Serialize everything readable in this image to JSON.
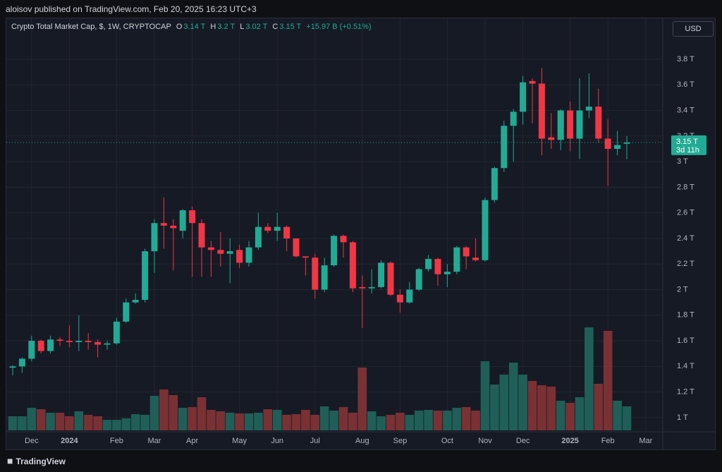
{
  "header": {
    "publisher": "aloisov published on TradingView.com, Feb 20, 2025 16:23 UTC+3"
  },
  "footer": {
    "brand": "TradingView"
  },
  "chart_data": {
    "type": "candlestick",
    "title": "Crypto Total Market Cap, $, 1W, CRYPTOCAP",
    "legend_values": [
      {
        "key": "O",
        "label": "3.14 T"
      },
      {
        "key": "H",
        "label": "3.2 T"
      },
      {
        "key": "L",
        "label": "3.02 T"
      },
      {
        "key": "C",
        "label": "3.15 T"
      }
    ],
    "change": "+15.97 B (+0.51%)",
    "currency": "USD",
    "last_price": {
      "value": 3.15,
      "label": "3.15 T"
    },
    "countdown": "3d 11h",
    "up_color": "#22ab94",
    "down_color": "#f23645",
    "volume_up_color": "#1f5f58",
    "volume_down_color": "#7a3134",
    "grid": true,
    "ylim": [
      0.9,
      4.12
    ],
    "yticks": [
      {
        "value": 1,
        "label": "1 T"
      },
      {
        "value": 1.2,
        "label": "1.2 T"
      },
      {
        "value": 1.4,
        "label": "1.4 T"
      },
      {
        "value": 1.6,
        "label": "1.6 T"
      },
      {
        "value": 1.8,
        "label": "1.8 T"
      },
      {
        "value": 2,
        "label": "2 T"
      },
      {
        "value": 2.2,
        "label": "2.2 T"
      },
      {
        "value": 2.4,
        "label": "2.4 T"
      },
      {
        "value": 2.6,
        "label": "2.6 T"
      },
      {
        "value": 2.8,
        "label": "2.8 T"
      },
      {
        "value": 3,
        "label": "3 T"
      },
      {
        "value": 3.2,
        "label": "3.2 T"
      },
      {
        "value": 3.4,
        "label": "3.4 T"
      },
      {
        "value": 3.6,
        "label": "3.6 T"
      },
      {
        "value": 3.8,
        "label": "3.8 T"
      }
    ],
    "categories": [
      null,
      null,
      "Dec",
      null,
      null,
      null,
      "2024",
      null,
      null,
      null,
      null,
      "Feb",
      null,
      null,
      null,
      "Mar",
      null,
      null,
      null,
      "Apr",
      null,
      null,
      null,
      null,
      "May",
      null,
      null,
      null,
      "Jun",
      null,
      null,
      null,
      "Jul",
      null,
      null,
      null,
      null,
      "Aug",
      null,
      null,
      null,
      "Sep",
      null,
      null,
      null,
      null,
      "Oct",
      null,
      null,
      null,
      "Nov",
      null,
      null,
      null,
      "Dec",
      null,
      null,
      null,
      null,
      "2025",
      null,
      null,
      null,
      "Feb",
      null,
      null,
      null,
      "Mar"
    ],
    "open": [
      1.39,
      1.4,
      1.46,
      1.6,
      1.52,
      1.61,
      1.6,
      1.59,
      1.6,
      1.59,
      1.57,
      1.58,
      1.75,
      1.9,
      1.92,
      2.3,
      2.52,
      2.5,
      2.46,
      2.62,
      2.52,
      2.33,
      2.31,
      2.28,
      2.31,
      2.21,
      2.33,
      2.49,
      2.46,
      2.49,
      2.4,
      2.26,
      2.25,
      2.0,
      2.19,
      2.42,
      2.37,
      2.02,
      2.01,
      2.02,
      2.21,
      1.96,
      1.9,
      2.0,
      2.16,
      2.24,
      2.12,
      2.14,
      2.33,
      2.25,
      2.23,
      2.7,
      2.95,
      3.28,
      3.39,
      3.63,
      3.61,
      3.19,
      3.17,
      3.4,
      3.18,
      3.4,
      3.43,
      3.18,
      3.1,
      3.14,
      null,
      null
    ],
    "high": [
      1.41,
      1.47,
      1.64,
      1.61,
      1.64,
      1.63,
      1.72,
      1.8,
      1.66,
      1.61,
      1.6,
      1.78,
      1.93,
      1.97,
      2.32,
      2.55,
      2.72,
      2.55,
      2.63,
      2.65,
      2.55,
      2.38,
      2.45,
      2.4,
      2.35,
      2.38,
      2.6,
      2.52,
      2.6,
      2.5,
      2.4,
      2.26,
      2.28,
      2.25,
      2.43,
      2.43,
      2.38,
      2.11,
      2.16,
      2.23,
      2.22,
      2.0,
      2.06,
      2.17,
      2.27,
      2.25,
      2.2,
      2.34,
      2.34,
      2.4,
      2.72,
      2.96,
      3.32,
      3.41,
      3.67,
      3.65,
      3.73,
      3.38,
      3.41,
      3.47,
      3.65,
      3.69,
      3.57,
      3.33,
      3.24,
      3.2,
      null,
      null
    ],
    "low": [
      1.33,
      1.35,
      1.44,
      1.5,
      1.5,
      1.56,
      1.55,
      1.52,
      1.53,
      1.47,
      1.53,
      1.57,
      1.74,
      1.89,
      1.9,
      2.13,
      2.32,
      2.15,
      2.4,
      2.1,
      2.1,
      2.1,
      2.18,
      2.05,
      2.17,
      2.18,
      2.31,
      2.44,
      2.38,
      2.3,
      2.25,
      2.11,
      1.93,
      1.98,
      2.18,
      2.25,
      1.98,
      1.7,
      1.97,
      2.01,
      1.95,
      1.82,
      1.89,
      1.99,
      2.14,
      2.03,
      2.02,
      2.12,
      2.16,
      2.22,
      2.22,
      2.68,
      2.92,
      3.0,
      3.29,
      3.3,
      3.05,
      3.1,
      3.09,
      3.08,
      3.02,
      3.34,
      3.15,
      2.81,
      3.05,
      3.02,
      null,
      null
    ],
    "close": [
      1.4,
      1.46,
      1.6,
      1.52,
      1.61,
      1.6,
      1.59,
      1.6,
      1.59,
      1.57,
      1.58,
      1.75,
      1.9,
      1.92,
      2.3,
      2.52,
      2.5,
      2.48,
      2.62,
      2.52,
      2.33,
      2.31,
      2.28,
      2.3,
      2.21,
      2.33,
      2.49,
      2.46,
      2.49,
      2.4,
      2.26,
      2.25,
      2.0,
      2.19,
      2.42,
      2.37,
      2.01,
      2.01,
      2.02,
      2.21,
      1.96,
      1.9,
      2.0,
      2.16,
      2.24,
      2.12,
      2.14,
      2.33,
      2.26,
      2.23,
      2.7,
      2.95,
      3.28,
      3.39,
      3.62,
      3.61,
      3.18,
      3.17,
      3.4,
      3.18,
      3.4,
      3.43,
      3.18,
      3.1,
      3.13,
      3.15,
      null,
      null
    ],
    "volume": [
      20,
      20,
      32,
      30,
      25,
      25,
      20,
      27,
      22,
      20,
      15,
      15,
      17,
      23,
      22,
      49,
      58,
      50,
      32,
      33,
      47,
      29,
      27,
      25,
      24,
      24,
      25,
      30,
      29,
      22,
      23,
      29,
      22,
      34,
      28,
      33,
      25,
      89,
      27,
      20,
      22,
      25,
      22,
      28,
      29,
      28,
      28,
      32,
      33,
      28,
      98,
      65,
      79,
      96,
      79,
      70,
      64,
      62,
      42,
      39,
      47,
      146,
      66,
      141,
      42,
      34,
      null,
      null
    ]
  }
}
